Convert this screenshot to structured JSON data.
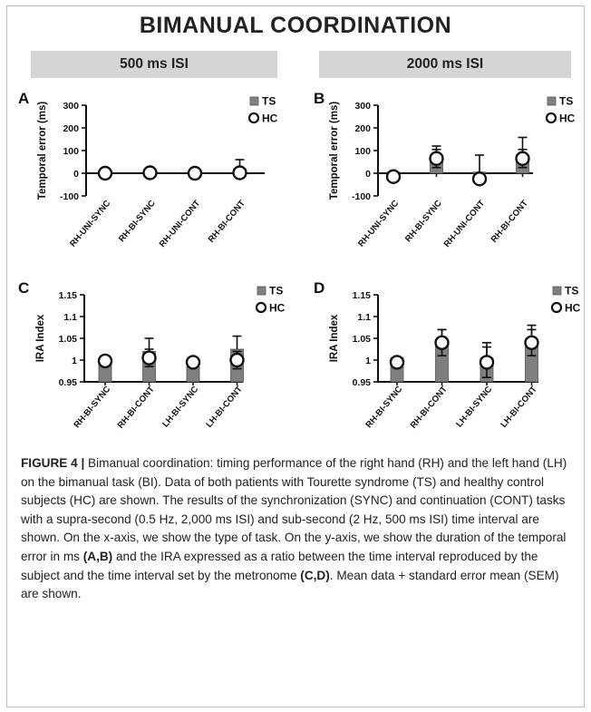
{
  "title": "BIMANUAL COORDINATION",
  "isi_headers": [
    "500 ms ISI",
    "2000 ms ISI"
  ],
  "legend_labels": {
    "ts": "TS",
    "hc": "HC"
  },
  "colors": {
    "ts": "#7f7f7f",
    "hc": "#ffffff",
    "axis": "#111111",
    "header_bg": "#d5d5d5"
  },
  "chart_data": [
    {
      "panel": "A",
      "type": "bar",
      "header": "500 ms ISI",
      "ylabel": "Temporal error (ms)",
      "ylim": [
        -100,
        300
      ],
      "yticks": [
        300,
        200,
        100,
        0,
        -100
      ],
      "ytick_labels": [
        "300",
        "200",
        "100",
        "0",
        "-100"
      ],
      "categories": [
        "RH-UNI-SYNC",
        "RH-BI-SYNC",
        "RH-UNI-CONT",
        "RH-BI-CONT"
      ],
      "series": [
        {
          "name": "TS",
          "values": [
            2,
            12,
            -15,
            20
          ],
          "errors": [
            8,
            12,
            10,
            40
          ]
        },
        {
          "name": "HC",
          "values": [
            0,
            2,
            0,
            2
          ],
          "errors": [
            0,
            0,
            0,
            0
          ]
        }
      ]
    },
    {
      "panel": "B",
      "type": "bar",
      "header": "2000 ms ISI",
      "ylabel": "Temporal error (ms)",
      "ylim": [
        -100,
        300
      ],
      "yticks": [
        300,
        200,
        100,
        0,
        -100
      ],
      "ytick_labels": [
        "300",
        "200",
        "100",
        "0",
        "-100"
      ],
      "categories": [
        "RH-UNI-SYNC",
        "RH-BI-SYNC",
        "RH-UNI-CONT",
        "RH-BI-CONT"
      ],
      "series": [
        {
          "name": "TS",
          "values": [
            5,
            80,
            5,
            80
          ],
          "errors": [
            0,
            40,
            75,
            78
          ]
        },
        {
          "name": "HC",
          "values": [
            -15,
            65,
            -25,
            65
          ],
          "errors": [
            0,
            40,
            0,
            40
          ]
        }
      ]
    },
    {
      "panel": "C",
      "type": "bar",
      "header": "500 ms ISI",
      "ylabel": "IRA Index",
      "ylim": [
        0.95,
        1.15
      ],
      "yticks": [
        1.15,
        1.1,
        1.05,
        1,
        0.95
      ],
      "ytick_labels": [
        "1.15",
        "1.1",
        "1.05",
        "1",
        "0.95"
      ],
      "categories": [
        "RH-BI-SYNC",
        "RH-BI-CONT",
        "LH-BI-SYNC",
        "LH-BI-CONT"
      ],
      "series": [
        {
          "name": "TS",
          "values": [
            1.0,
            1.02,
            0.985,
            1.025
          ],
          "errors": [
            0,
            0.03,
            0,
            0.03
          ]
        },
        {
          "name": "HC",
          "values": [
            0.998,
            1.005,
            0.995,
            1.0
          ],
          "errors": [
            0,
            0.02,
            0.01,
            0.02
          ]
        }
      ]
    },
    {
      "panel": "D",
      "type": "bar",
      "header": "2000 ms ISI",
      "ylabel": "IRA Index",
      "ylim": [
        0.95,
        1.15
      ],
      "yticks": [
        1.15,
        1.1,
        1.05,
        1,
        0.95
      ],
      "ytick_labels": [
        "1.15",
        "1.1",
        "1.05",
        "1",
        "0.95"
      ],
      "categories": [
        "RH-BI-SYNC",
        "RH-BI-CONT",
        "LH-BI-SYNC",
        "LH-BI-CONT"
      ],
      "series": [
        {
          "name": "TS",
          "values": [
            1.005,
            1.04,
            1.005,
            1.04
          ],
          "errors": [
            0,
            0.03,
            0.035,
            0.04
          ]
        },
        {
          "name": "HC",
          "values": [
            0.995,
            1.04,
            0.995,
            1.04
          ],
          "errors": [
            0,
            0.03,
            0.035,
            0.03
          ]
        }
      ]
    }
  ],
  "caption": {
    "label": "FIGURE 4 |",
    "part1": " Bimanual coordination: timing performance of the right hand (RH) and the left hand (LH) on the bimanual task (BI). Data of both patients with Tourette syndrome (TS) and healthy control subjects (HC) are shown. The results of the synchronization (SYNC) and continuation (CONT) tasks with a supra-second (0.5 Hz, 2,000 ms ISI) and sub-second (2 Hz, 500 ms ISI) time interval are shown. On the x-axis, we show the type of task. On the y-axis, we show the duration of the temporal error in ms ",
    "ref1": "(A,B)",
    "part2": " and the IRA expressed as a ratio between the time interval reproduced by the subject and the time interval set by the metronome ",
    "ref2": "(C,D)",
    "part3": ". Mean data + standard error mean (SEM) are shown."
  }
}
